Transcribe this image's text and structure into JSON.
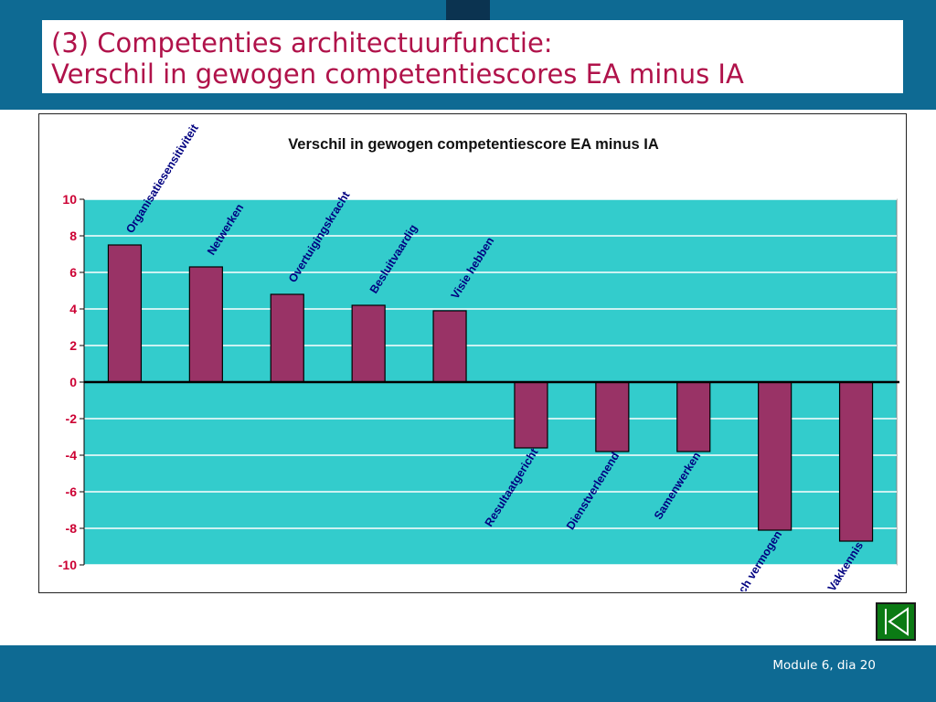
{
  "slide": {
    "title_line1": "(3) Competenties architectuurfunctie:",
    "title_line2": "Verschil in gewogen competentiescores EA minus IA",
    "footer": "Module 6, dia 20"
  },
  "colors": {
    "band": "#0e6a93",
    "title": "#b0124a",
    "plot_background": "#33cccc",
    "bar": "#993366",
    "category_label": "#000080",
    "tick_label": "#cc0033",
    "nav_button": "#0b7a14"
  },
  "nav_button_icon": "go-to-start-icon",
  "chart_data": {
    "type": "bar",
    "title": "Verschil in gewogen competentiescore EA minus IA",
    "xlabel": "",
    "ylabel": "",
    "ylim": [
      -10,
      10
    ],
    "yticks": [
      10,
      8,
      6,
      4,
      2,
      0,
      -2,
      -4,
      -6,
      -8,
      -10
    ],
    "ytick_labels": [
      "10",
      "8",
      "6",
      "4",
      "2",
      "0",
      "-2",
      "-4",
      "-6",
      "-8",
      "-10"
    ],
    "grid": true,
    "legend": "none",
    "categories": [
      "Organisatiesensitiviteit",
      "Netwerken",
      "Overtuigingskracht",
      "Besluitvaardig",
      "Visie hebben",
      "Resultaatgericht",
      "Dienstverlenend",
      "Samenwerken",
      "Analytisch vermogen",
      "Vakkennis"
    ],
    "values": [
      7.5,
      6.3,
      4.8,
      4.2,
      3.9,
      -3.6,
      -3.8,
      -3.8,
      -8.1,
      -8.7
    ]
  }
}
